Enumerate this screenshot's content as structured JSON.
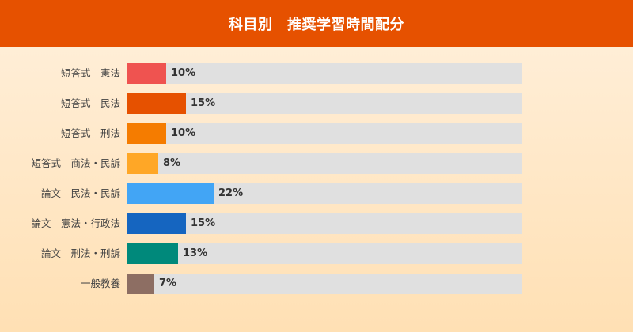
{
  "header": {
    "title": "科目別　推奨学習時間配分",
    "background": "#e65100"
  },
  "chart_data": {
    "type": "bar",
    "orientation": "horizontal",
    "title": "科目別　推奨学習時間配分",
    "xlabel": "",
    "ylabel": "",
    "xlim": [
      0,
      100
    ],
    "unit": "%",
    "grid": false,
    "legend": "none",
    "categories": [
      "短答式　憲法",
      "短答式　民法",
      "短答式　刑法",
      "短答式　商法・民訴",
      "論文　民法・民訴",
      "論文　憲法・行政法",
      "論文　刑法・刑訴",
      "一般教養"
    ],
    "values": [
      10,
      15,
      10,
      8,
      22,
      15,
      13,
      7
    ],
    "colors": [
      "#ef5350",
      "#e65100",
      "#f57c00",
      "#ffa726",
      "#42a5f5",
      "#1565c0",
      "#00897b",
      "#8d6e63"
    ],
    "value_labels": [
      "10%",
      "15%",
      "10%",
      "8%",
      "22%",
      "15%",
      "13%",
      "7%"
    ],
    "track_color": "#e0e0e0"
  }
}
